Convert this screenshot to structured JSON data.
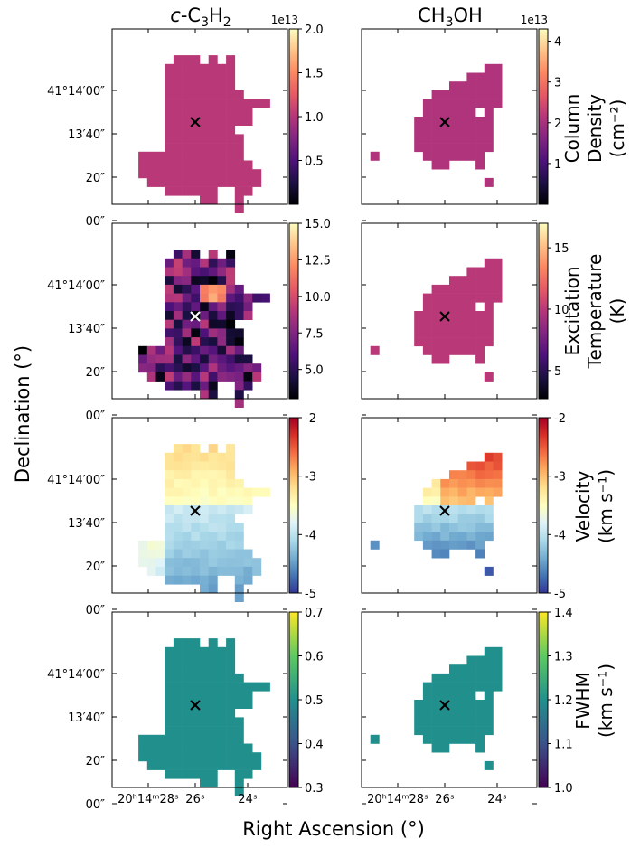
{
  "figure": {
    "xlabel": "Right Ascension (°)",
    "ylabel": "Declination (°)",
    "col_titles": [
      {
        "pre": "c",
        "rest": "-C",
        "sub1": "3",
        "mid": "H",
        "sub2": "2"
      },
      {
        "pre": "",
        "rest": "CH",
        "sub1": "3",
        "mid": "OH",
        "sub2": ""
      }
    ],
    "row_titles": [
      [
        "Column",
        "Density",
        "(cm⁻²)"
      ],
      [
        "Excitation",
        "Temperature",
        "(K)"
      ],
      [
        "Velocity",
        "(km s⁻¹)"
      ],
      [
        "FWHM",
        "(km s⁻¹)"
      ]
    ],
    "dec_ticks": [
      "41°14′00″",
      "13′40″",
      "20″",
      "00″"
    ],
    "ra_ticks": [
      "20ʰ14ᵐ28ˢ",
      "26ˢ",
      "24ˢ"
    ],
    "marker_color_dark": "#000000",
    "marker_color_light": "#ffffff"
  },
  "chart_data": [
    {
      "type": "heatmap",
      "id": "c3h2-column-density",
      "species": "c-C3H2",
      "quantity": "Column Density",
      "unit": "cm^-2",
      "colormap": "magma",
      "vmin": 0.0,
      "vmax": 2.0,
      "offset_text": "1e13",
      "colorbar_ticks": [
        "0.5",
        "1.0",
        "1.5",
        "2.0"
      ],
      "colorbar_tick_values": [
        0.5,
        1.0,
        1.5,
        2.0
      ],
      "value_approx": 1.02,
      "pixel_color": "#a7325a",
      "marker": "x"
    },
    {
      "type": "heatmap",
      "id": "ch3oh-column-density",
      "species": "CH3OH",
      "quantity": "Column Density",
      "unit": "cm^-2",
      "colormap": "magma",
      "vmin": 0.0,
      "vmax": 4.3,
      "offset_text": "1e13",
      "colorbar_ticks": [
        "1",
        "2",
        "3",
        "4"
      ],
      "colorbar_tick_values": [
        1,
        2,
        3,
        4
      ],
      "value_approx": 2.1,
      "pixel_color": "#a7325a",
      "marker": "x"
    },
    {
      "type": "heatmap",
      "id": "c3h2-excitation-temperature",
      "species": "c-C3H2",
      "quantity": "Excitation Temperature",
      "unit": "K",
      "colormap": "magma",
      "vmin": 3.0,
      "vmax": 15.0,
      "colorbar_ticks": [
        "5.0",
        "7.5",
        "10.0",
        "12.5",
        "15.0"
      ],
      "colorbar_tick_values": [
        5.0,
        7.5,
        10.0,
        12.5,
        15.0
      ],
      "value_range_approx": [
        3.0,
        14.0
      ],
      "marker": "x-white"
    },
    {
      "type": "heatmap",
      "id": "ch3oh-excitation-temperature",
      "species": "CH3OH",
      "quantity": "Excitation Temperature",
      "unit": "K",
      "colormap": "magma",
      "vmin": 2.7,
      "vmax": 17.0,
      "colorbar_ticks": [
        "5",
        "10",
        "15"
      ],
      "colorbar_tick_values": [
        5,
        10,
        15
      ],
      "value_approx": 10.0,
      "pixel_color": "#a7307c",
      "marker": "x"
    },
    {
      "type": "heatmap",
      "id": "c3h2-velocity",
      "species": "c-C3H2",
      "quantity": "Velocity",
      "unit": "km s^-1",
      "colormap": "RdYlBu_r",
      "vmin": -5.0,
      "vmax": -2.0,
      "colorbar_ticks": [
        "-5",
        "-4",
        "-3",
        "-2"
      ],
      "colorbar_tick_values": [
        -5,
        -4,
        -3,
        -2
      ],
      "value_range_approx": [
        -4.4,
        -3.1
      ],
      "marker": "x"
    },
    {
      "type": "heatmap",
      "id": "ch3oh-velocity",
      "species": "CH3OH",
      "quantity": "Velocity",
      "unit": "km s^-1",
      "colormap": "RdYlBu_r",
      "vmin": -5.0,
      "vmax": -2.0,
      "colorbar_ticks": [
        "-5",
        "-4",
        "-3",
        "-2"
      ],
      "colorbar_tick_values": [
        -5,
        -4,
        -3,
        -2
      ],
      "value_range_approx": [
        -4.4,
        -2.2
      ],
      "marker": "x"
    },
    {
      "type": "heatmap",
      "id": "c3h2-fwhm",
      "species": "c-C3H2",
      "quantity": "FWHM",
      "unit": "km s^-1",
      "colormap": "viridis",
      "vmin": 0.3,
      "vmax": 0.7,
      "colorbar_ticks": [
        "0.3",
        "0.4",
        "0.5",
        "0.6",
        "0.7"
      ],
      "colorbar_tick_values": [
        0.3,
        0.4,
        0.5,
        0.6,
        0.7
      ],
      "value_approx": 0.5,
      "pixel_color": "#20908c",
      "marker": "x"
    },
    {
      "type": "heatmap",
      "id": "ch3oh-fwhm",
      "species": "CH3OH",
      "quantity": "FWHM",
      "unit": "km s^-1",
      "colormap": "viridis",
      "vmin": 1.0,
      "vmax": 1.4,
      "colorbar_ticks": [
        "1.0",
        "1.1",
        "1.2",
        "1.3",
        "1.4"
      ],
      "colorbar_tick_values": [
        1.0,
        1.1,
        1.2,
        1.3,
        1.4
      ],
      "value_approx": 1.2,
      "pixel_color": "#20908c",
      "marker": "x"
    }
  ]
}
